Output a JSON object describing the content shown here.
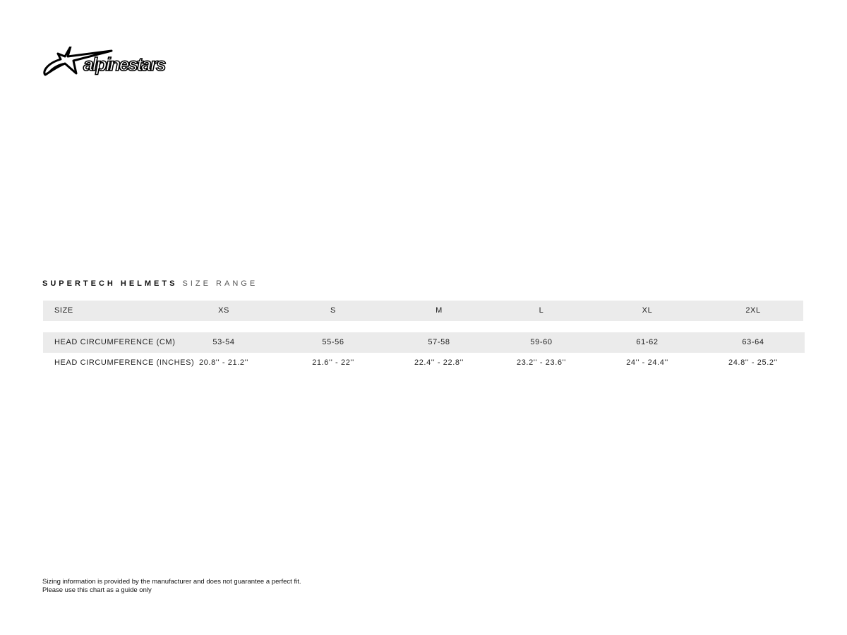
{
  "brand": {
    "logo_text": "alpinestars",
    "icon": "star-swoosh-logo"
  },
  "title": {
    "bold": "SUPERTECH HELMETS",
    "light": "SIZE RANGE"
  },
  "table": {
    "header": {
      "label": "SIZE",
      "values": [
        "XS",
        "S",
        "M",
        "L",
        "XL",
        "2XL"
      ]
    },
    "rows": [
      {
        "label": "HEAD CIRCUMFERENCE (CM)",
        "values": [
          "53-54",
          "55-56",
          "57-58",
          "59-60",
          "61-62",
          "63-64"
        ]
      },
      {
        "label": "HEAD CIRCUMFERENCE (INCHES)",
        "values": [
          "20.8'' - 21.2''",
          "21.6'' - 22''",
          "22.4'' - 22.8''",
          "23.2'' - 23.6''",
          "24'' - 24.4''",
          "24.8'' - 25.2''"
        ]
      }
    ]
  },
  "footer": {
    "line1": "Sizing information is provided by the manufacturer and does not guarantee a perfect fit.",
    "line2": "Please use this chart as a guide only"
  }
}
